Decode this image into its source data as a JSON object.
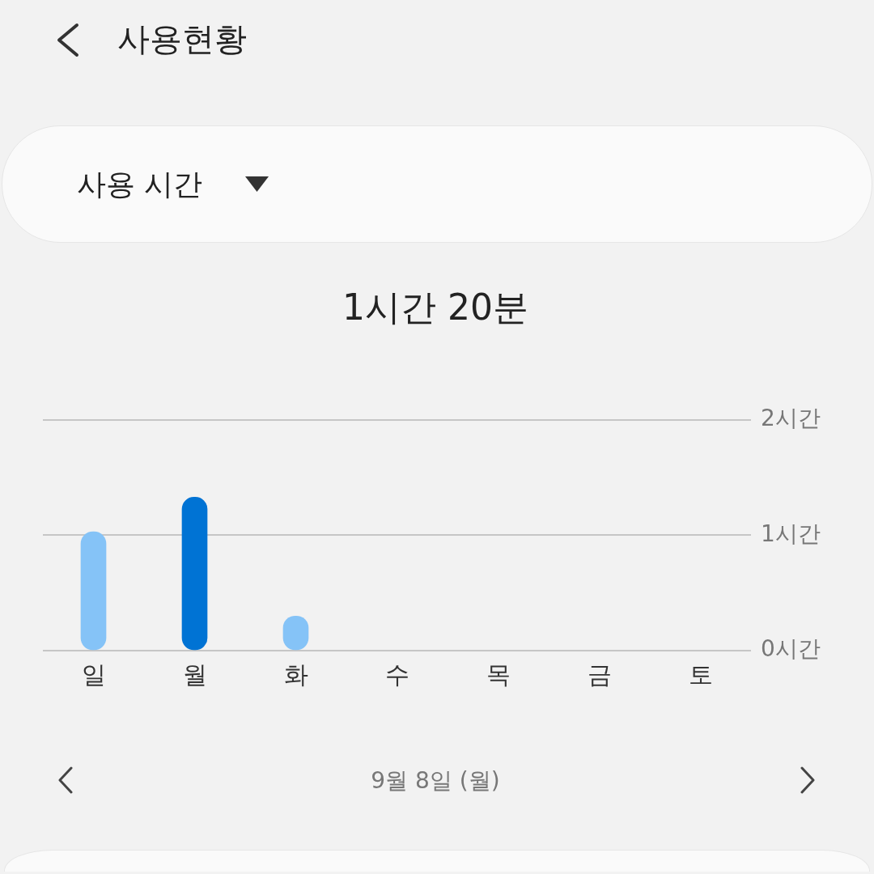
{
  "chart_data": {
    "type": "bar",
    "title": "사용현황",
    "subtitle": "1시간 20분",
    "annotations": [
      "사용 시간",
      "9월 8일 (월)"
    ],
    "categories": [
      "일",
      "월",
      "화",
      "수",
      "목",
      "금",
      "토"
    ],
    "values": [
      1.03,
      1.33,
      0.3,
      null,
      null,
      null,
      null
    ],
    "colors": [
      "#85c3f7",
      "#0073d4",
      "#85c3f7",
      "#85c3f7",
      "#85c3f7",
      "#85c3f7",
      "#85c3f7"
    ],
    "ylim": [
      0,
      2
    ],
    "yticks": [
      {
        "value": 0,
        "label": "0시간"
      },
      {
        "value": 1,
        "label": "1시간"
      },
      {
        "value": 2,
        "label": "2시간"
      }
    ],
    "grid": "y"
  }
}
